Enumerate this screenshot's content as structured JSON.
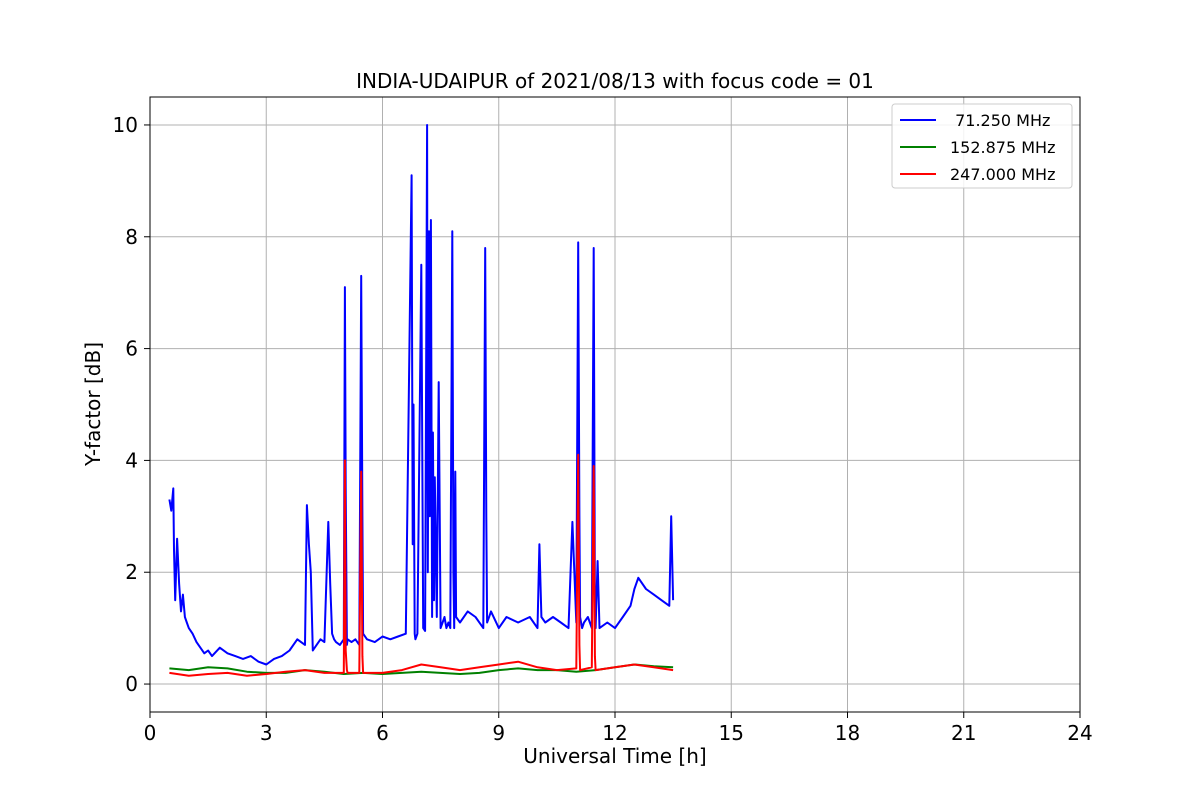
{
  "chart_data": {
    "type": "line",
    "title": "INDIA-UDAIPUR of 2021/08/13 with focus code = 01",
    "xlabel": "Universal Time [h]",
    "ylabel": "Y-factor [dB]",
    "xlim": [
      0,
      24
    ],
    "ylim": [
      -0.5,
      10.5
    ],
    "xticks": [
      0,
      3,
      6,
      9,
      12,
      15,
      18,
      21,
      24
    ],
    "yticks": [
      0,
      2,
      4,
      6,
      8,
      10
    ],
    "grid": true,
    "legend_position": "top-right",
    "series": [
      {
        "name": " 71.250 MHz",
        "color": "#0000ff",
        "x": [
          0.5,
          0.55,
          0.6,
          0.62,
          0.65,
          0.7,
          0.75,
          0.8,
          0.85,
          0.9,
          0.95,
          1.0,
          1.1,
          1.2,
          1.3,
          1.4,
          1.5,
          1.6,
          1.8,
          2.0,
          2.2,
          2.4,
          2.6,
          2.8,
          3.0,
          3.2,
          3.4,
          3.6,
          3.8,
          4.0,
          4.05,
          4.1,
          4.15,
          4.2,
          4.3,
          4.4,
          4.5,
          4.6,
          4.65,
          4.7,
          4.75,
          4.8,
          4.9,
          5.0,
          5.03,
          5.05,
          5.08,
          5.1,
          5.2,
          5.3,
          5.4,
          5.45,
          5.48,
          5.5,
          5.6,
          5.8,
          6.0,
          6.2,
          6.4,
          6.6,
          6.75,
          6.78,
          6.8,
          6.83,
          6.85,
          6.9,
          7.0,
          7.05,
          7.1,
          7.15,
          7.17,
          7.2,
          7.22,
          7.25,
          7.28,
          7.3,
          7.33,
          7.35,
          7.4,
          7.45,
          7.5,
          7.55,
          7.6,
          7.65,
          7.7,
          7.75,
          7.8,
          7.83,
          7.85,
          7.88,
          7.9,
          8.0,
          8.2,
          8.4,
          8.6,
          8.65,
          8.68,
          8.7,
          8.75,
          8.8,
          9.0,
          9.2,
          9.5,
          9.8,
          10.0,
          10.05,
          10.1,
          10.2,
          10.4,
          10.6,
          10.8,
          10.9,
          11.0,
          11.05,
          11.08,
          11.1,
          11.15,
          11.2,
          11.3,
          11.4,
          11.45,
          11.48,
          11.5,
          11.55,
          11.6,
          11.8,
          12.0,
          12.2,
          12.4,
          12.5,
          12.6,
          12.8,
          13.0,
          13.2,
          13.4,
          13.45,
          13.5
        ],
        "y": [
          3.3,
          3.1,
          3.5,
          2.4,
          1.5,
          2.6,
          1.8,
          1.3,
          1.6,
          1.2,
          1.1,
          1.0,
          0.9,
          0.75,
          0.65,
          0.55,
          0.6,
          0.5,
          0.65,
          0.55,
          0.5,
          0.45,
          0.5,
          0.4,
          0.35,
          0.45,
          0.5,
          0.6,
          0.8,
          0.7,
          3.2,
          2.5,
          2.0,
          0.6,
          0.7,
          0.8,
          0.75,
          2.9,
          1.8,
          0.9,
          0.8,
          0.75,
          0.7,
          0.8,
          7.1,
          3.5,
          0.7,
          0.8,
          0.75,
          0.8,
          0.7,
          7.3,
          3.0,
          0.9,
          0.8,
          0.75,
          0.85,
          0.8,
          0.85,
          0.9,
          9.1,
          2.5,
          5.0,
          0.9,
          0.8,
          0.9,
          7.5,
          1.0,
          0.95,
          10.0,
          2.0,
          8.1,
          3.0,
          8.3,
          1.2,
          4.5,
          1.5,
          3.7,
          1.2,
          5.4,
          1.0,
          1.1,
          1.2,
          1.0,
          1.1,
          1.0,
          8.1,
          2.0,
          1.0,
          3.8,
          1.2,
          1.1,
          1.3,
          1.2,
          1.0,
          7.8,
          3.0,
          1.1,
          1.2,
          1.3,
          1.0,
          1.2,
          1.1,
          1.2,
          1.0,
          2.5,
          1.2,
          1.1,
          1.2,
          1.1,
          1.0,
          2.9,
          1.1,
          7.9,
          3.0,
          1.2,
          1.0,
          1.1,
          1.2,
          1.0,
          7.8,
          1.5,
          1.0,
          2.2,
          1.0,
          1.1,
          1.0,
          1.2,
          1.4,
          1.7,
          1.9,
          1.7,
          1.6,
          1.5,
          1.4,
          3.0,
          1.5
        ]
      },
      {
        "name": "152.875 MHz",
        "color": "#008000",
        "x": [
          0.5,
          1.0,
          1.5,
          2.0,
          2.5,
          3.0,
          3.5,
          4.0,
          4.5,
          5.0,
          5.5,
          6.0,
          6.5,
          7.0,
          7.5,
          8.0,
          8.5,
          9.0,
          9.5,
          10.0,
          10.5,
          11.0,
          11.5,
          12.0,
          12.5,
          13.0,
          13.5
        ],
        "y": [
          0.28,
          0.25,
          0.3,
          0.28,
          0.22,
          0.2,
          0.2,
          0.25,
          0.22,
          0.18,
          0.2,
          0.18,
          0.2,
          0.22,
          0.2,
          0.18,
          0.2,
          0.25,
          0.28,
          0.25,
          0.25,
          0.22,
          0.25,
          0.3,
          0.35,
          0.32,
          0.3
        ]
      },
      {
        "name": "247.000 MHz",
        "color": "#ff0000",
        "x": [
          0.5,
          1.0,
          1.5,
          2.0,
          2.5,
          3.0,
          3.5,
          4.0,
          4.5,
          5.0,
          5.03,
          5.05,
          5.08,
          5.1,
          5.4,
          5.45,
          5.48,
          5.5,
          6.0,
          6.5,
          7.0,
          7.5,
          8.0,
          8.5,
          9.0,
          9.5,
          10.0,
          10.5,
          11.0,
          11.05,
          11.08,
          11.1,
          11.4,
          11.45,
          11.48,
          11.5,
          12.0,
          12.5,
          13.0,
          13.5
        ],
        "y": [
          0.2,
          0.15,
          0.18,
          0.2,
          0.15,
          0.18,
          0.22,
          0.25,
          0.2,
          0.2,
          4.0,
          0.6,
          0.25,
          0.2,
          0.2,
          3.8,
          0.5,
          0.2,
          0.2,
          0.25,
          0.35,
          0.3,
          0.25,
          0.3,
          0.35,
          0.4,
          0.3,
          0.25,
          0.28,
          4.1,
          0.7,
          0.25,
          0.3,
          3.9,
          0.5,
          0.25,
          0.3,
          0.35,
          0.3,
          0.25
        ]
      }
    ]
  }
}
